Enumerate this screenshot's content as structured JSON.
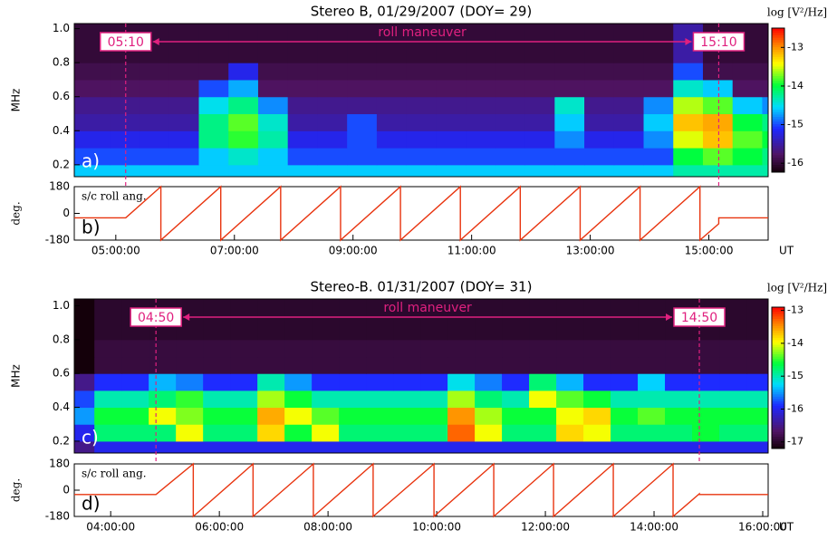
{
  "chart_data": [
    {
      "type": "heatmap",
      "title": "Stereo B,  01/29/2007 (DOY= 29)",
      "y_label": "MHz",
      "panel_label": "a)",
      "colorbar_label": "log [V²/Hz]",
      "clim": [
        -16.23,
        -12.5
      ],
      "cticks": [
        -16,
        -15,
        -14,
        -13
      ],
      "xlim": [
        4.3,
        16.0
      ],
      "ylim": [
        0.13,
        1.03
      ],
      "yticks": [
        0.2,
        0.4,
        0.6,
        0.8,
        {
          "value": 1,
          "label": "1.0"
        }
      ],
      "x_bins": [
        4.3,
        4.9,
        5.4,
        5.9,
        6.4,
        6.9,
        7.4,
        7.9,
        8.4,
        8.9,
        9.4,
        9.9,
        10.4,
        10.9,
        11.4,
        11.9,
        12.4,
        12.9,
        13.4,
        13.9,
        14.4,
        14.9,
        15.4,
        15.9,
        16.0
      ],
      "y_bins": [
        0.13,
        0.2,
        0.3,
        0.4,
        0.5,
        0.6,
        0.7,
        0.8,
        1.03
      ],
      "z": [
        [
          -14.6,
          -14.6,
          -14.6,
          -14.6,
          -14.6,
          -14.6,
          -14.6,
          -14.6,
          -14.6,
          -14.6,
          -14.6,
          -14.6,
          -14.6,
          -14.6,
          -14.6,
          -14.6,
          -14.6,
          -14.6,
          -14.6,
          -14.6,
          -14.3,
          -14.3,
          -14.3,
          -14.3
        ],
        [
          -15.0,
          -15.0,
          -15.0,
          -15.0,
          -14.6,
          -14.4,
          -14.6,
          -15.0,
          -15.0,
          -15.0,
          -15.0,
          -15.0,
          -15.0,
          -15.0,
          -15.0,
          -15.0,
          -15.0,
          -15.0,
          -15.0,
          -15.0,
          -14.0,
          -13.8,
          -14.0,
          -14.2
        ],
        [
          -15.2,
          -15.2,
          -15.2,
          -15.2,
          -14.2,
          -13.9,
          -14.3,
          -15.2,
          -15.2,
          -15.0,
          -15.2,
          -15.2,
          -15.2,
          -15.2,
          -15.2,
          -15.2,
          -14.8,
          -15.2,
          -15.2,
          -14.8,
          -13.5,
          -13.2,
          -13.8,
          -14.0
        ],
        [
          -15.5,
          -15.5,
          -15.5,
          -15.5,
          -14.2,
          -13.8,
          -14.4,
          -15.5,
          -15.5,
          -15.0,
          -15.5,
          -15.5,
          -15.5,
          -15.5,
          -15.5,
          -15.5,
          -14.6,
          -15.5,
          -15.5,
          -14.6,
          -13.2,
          -13.1,
          -14.0,
          -14.2
        ],
        [
          -15.6,
          -15.6,
          -15.6,
          -15.6,
          -14.5,
          -14.2,
          -14.8,
          -15.6,
          -15.6,
          -15.6,
          -15.6,
          -15.6,
          -15.6,
          -15.6,
          -15.6,
          -15.6,
          -14.4,
          -15.6,
          -15.6,
          -14.8,
          -13.6,
          -13.8,
          -14.6,
          -14.8
        ],
        [
          -15.8,
          -15.8,
          -15.8,
          -15.8,
          -15.0,
          -14.7,
          -15.8,
          -15.8,
          -15.8,
          -15.8,
          -15.8,
          -15.8,
          -15.8,
          -15.8,
          -15.8,
          -15.8,
          -15.8,
          -15.8,
          -15.8,
          -15.8,
          -14.4,
          -14.6,
          -15.8,
          -15.8
        ],
        [
          -15.9,
          -15.9,
          -15.9,
          -15.9,
          -15.9,
          -15.2,
          -15.9,
          -15.9,
          -15.9,
          -15.9,
          -15.9,
          -15.9,
          -15.9,
          -15.9,
          -15.9,
          -15.9,
          -15.9,
          -15.9,
          -15.9,
          -15.9,
          -15.0,
          -15.9,
          -15.9,
          -15.9
        ],
        [
          -16.0,
          -16.0,
          -16.0,
          -16.0,
          -16.0,
          -16.0,
          -16.0,
          -16.0,
          -16.0,
          -16.0,
          -16.0,
          -16.0,
          -16.0,
          -16.0,
          -16.0,
          -16.0,
          -16.0,
          -16.0,
          -16.0,
          -16.0,
          -15.5,
          -16.0,
          -16.0,
          -16.0
        ]
      ],
      "annotations": [
        {
          "text": "05:10",
          "x": 5.1667
        },
        {
          "text": "15:10",
          "x": 15.1667
        }
      ],
      "arrow_label": "roll maneuver",
      "annotation_color": "#e0207f"
    },
    {
      "type": "line",
      "roll_label": "s/c roll ang.",
      "y_label": "deg.",
      "x_label": "UT",
      "panel_label": "b)",
      "xlim": [
        4.3,
        16.0
      ],
      "ylim": [
        -180,
        180
      ],
      "yticks": [
        -180,
        0,
        180
      ],
      "xticks": [
        {
          "value": 5,
          "label": "05:00:00"
        },
        {
          "value": 7,
          "label": "07:00:00"
        },
        {
          "value": 9,
          "label": "09:00:00"
        },
        {
          "value": 11,
          "label": "11:00:00"
        },
        {
          "value": 13,
          "label": "13:00:00"
        },
        {
          "value": 15,
          "label": "15:00:00"
        }
      ],
      "series": [
        {
          "color": "#e8340f",
          "x": [
            4.3,
            5.167,
            5.76,
            5.76,
            6.77,
            6.77,
            7.78,
            7.78,
            8.79,
            8.79,
            9.8,
            9.8,
            10.81,
            10.81,
            11.82,
            11.82,
            12.83,
            12.83,
            13.84,
            13.84,
            14.85,
            14.85,
            15.167,
            15.167,
            16.0
          ],
          "values": [
            -30,
            -30,
            180,
            -180,
            180,
            -180,
            180,
            -180,
            180,
            -180,
            180,
            -180,
            180,
            -180,
            180,
            -180,
            180,
            -180,
            180,
            -180,
            180,
            -180,
            -70,
            -30,
            -30
          ]
        }
      ]
    },
    {
      "type": "heatmap",
      "title": "Stereo-B.  01/31/2007 (DOY= 31)",
      "y_label": "MHz",
      "panel_label": "c)",
      "colorbar_label": "log [V²/Hz]",
      "clim": [
        -17.2,
        -12.9
      ],
      "cticks": [
        -17,
        -16,
        -15,
        -14,
        -13
      ],
      "xlim": [
        3.33,
        16.1
      ],
      "ylim": [
        0.13,
        1.04
      ],
      "yticks": [
        0.2,
        0.4,
        0.6,
        0.8,
        {
          "value": 1,
          "label": "1.0"
        }
      ],
      "x_bins": [
        3.33,
        3.7,
        4.2,
        4.7,
        5.2,
        5.7,
        6.2,
        6.7,
        7.2,
        7.7,
        8.2,
        8.7,
        9.2,
        9.7,
        10.2,
        10.7,
        11.2,
        11.7,
        12.2,
        12.7,
        13.2,
        13.7,
        14.2,
        14.7,
        15.2,
        15.7,
        16.1
      ],
      "y_bins": [
        0.13,
        0.2,
        0.3,
        0.4,
        0.5,
        0.6,
        0.7,
        0.8,
        1.04
      ],
      "z": [
        [
          -16.5,
          -16.0,
          -16.0,
          -16.0,
          -16.0,
          -16.0,
          -16.0,
          -16.0,
          -16.0,
          -16.0,
          -16.0,
          -16.0,
          -16.0,
          -16.0,
          -16.0,
          -16.0,
          -16.0,
          -16.0,
          -16.0,
          -16.0,
          -16.0,
          -16.0,
          -16.0,
          -16.0,
          -16.0,
          -16.0
        ],
        [
          -16.0,
          -14.8,
          -14.8,
          -14.8,
          -14.0,
          -14.8,
          -14.8,
          -13.8,
          -14.6,
          -14.0,
          -14.8,
          -14.8,
          -14.8,
          -14.8,
          -13.3,
          -14.0,
          -14.8,
          -14.8,
          -13.8,
          -14.0,
          -14.8,
          -14.8,
          -14.8,
          -14.6,
          -14.8,
          -14.8
        ],
        [
          -15.5,
          -14.6,
          -14.6,
          -14.0,
          -14.3,
          -14.6,
          -14.6,
          -13.6,
          -14.0,
          -14.4,
          -14.6,
          -14.6,
          -14.6,
          -14.6,
          -13.5,
          -14.2,
          -14.6,
          -14.6,
          -14.0,
          -13.8,
          -14.6,
          -14.4,
          -14.6,
          -14.6,
          -14.6,
          -14.6
        ],
        [
          -15.8,
          -15.0,
          -15.0,
          -14.8,
          -14.5,
          -15.0,
          -15.0,
          -14.2,
          -14.6,
          -15.0,
          -15.0,
          -15.0,
          -15.0,
          -15.0,
          -14.2,
          -14.8,
          -15.0,
          -14.0,
          -14.4,
          -14.6,
          -15.0,
          -15.0,
          -15.0,
          -15.0,
          -15.0,
          -15.0
        ],
        [
          -16.5,
          -15.9,
          -15.9,
          -15.4,
          -15.6,
          -15.9,
          -15.9,
          -15.0,
          -15.5,
          -15.9,
          -15.9,
          -15.9,
          -15.9,
          -15.9,
          -15.2,
          -15.6,
          -15.9,
          -14.8,
          -15.4,
          -15.9,
          -15.9,
          -15.3,
          -15.9,
          -15.9,
          -15.9,
          -15.9
        ],
        [
          -17.2,
          -16.9,
          -16.9,
          -16.9,
          -16.9,
          -16.9,
          -16.9,
          -16.9,
          -16.9,
          -16.9,
          -16.9,
          -16.9,
          -16.9,
          -16.9,
          -16.9,
          -16.9,
          -16.9,
          -16.9,
          -16.9,
          -16.9,
          -16.9,
          -16.9,
          -16.9,
          -16.9,
          -16.9,
          -16.9
        ],
        [
          -17.2,
          -16.9,
          -16.9,
          -16.9,
          -16.9,
          -16.9,
          -16.9,
          -16.9,
          -16.9,
          -16.9,
          -16.9,
          -16.9,
          -16.9,
          -16.9,
          -16.9,
          -16.9,
          -16.9,
          -16.9,
          -16.9,
          -16.9,
          -16.9,
          -16.9,
          -16.9,
          -16.9,
          -16.9,
          -16.9
        ],
        [
          -17.2,
          -17.0,
          -17.0,
          -17.0,
          -17.0,
          -17.0,
          -17.0,
          -17.0,
          -17.0,
          -17.0,
          -17.0,
          -17.0,
          -17.0,
          -17.0,
          -17.0,
          -17.0,
          -17.0,
          -17.0,
          -17.0,
          -17.0,
          -17.0,
          -17.0,
          -17.0,
          -17.0,
          -17.0,
          -17.0
        ]
      ],
      "annotations": [
        {
          "text": "04:50",
          "x": 4.8333
        },
        {
          "text": "14:50",
          "x": 14.8333
        }
      ],
      "arrow_label": "roll maneuver",
      "annotation_color": "#e0207f"
    },
    {
      "type": "line",
      "roll_label": "s/c roll ang.",
      "y_label": "deg.",
      "x_label": "UT",
      "panel_label": "d)",
      "xlim": [
        3.33,
        16.1
      ],
      "ylim": [
        -180,
        180
      ],
      "yticks": [
        -180,
        0,
        180
      ],
      "xticks": [
        {
          "value": 4,
          "label": "04:00:00"
        },
        {
          "value": 6,
          "label": "06:00:00"
        },
        {
          "value": 8,
          "label": "08:00:00"
        },
        {
          "value": 10,
          "label": "10:00:00"
        },
        {
          "value": 12,
          "label": "12:00:00"
        },
        {
          "value": 14,
          "label": "14:00:00"
        },
        {
          "value": 16,
          "label": "16:00:00"
        }
      ],
      "series": [
        {
          "color": "#e8340f",
          "x": [
            3.33,
            4.833,
            5.52,
            5.52,
            6.62,
            6.62,
            7.73,
            7.73,
            8.83,
            8.83,
            9.95,
            9.95,
            11.05,
            11.05,
            12.15,
            12.15,
            13.25,
            13.25,
            14.35,
            14.35,
            14.833,
            14.833,
            16.1
          ],
          "values": [
            -30,
            -30,
            180,
            -180,
            180,
            -180,
            180,
            -180,
            180,
            -180,
            180,
            -180,
            180,
            -180,
            180,
            -180,
            180,
            -180,
            180,
            -180,
            -25,
            -30,
            -30
          ]
        }
      ]
    }
  ]
}
